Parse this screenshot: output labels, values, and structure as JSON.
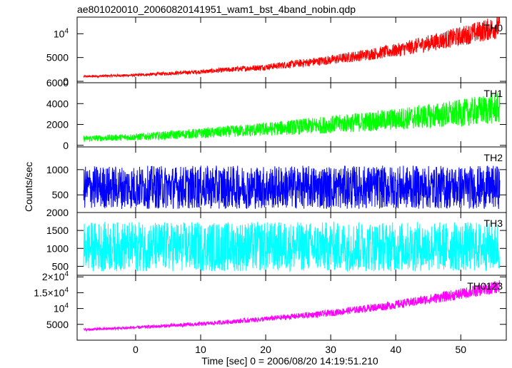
{
  "chart_data": {
    "type": "line",
    "title": "ae801020010_20060820141951_wam1_bst_4band_nobin.qdp",
    "xlabel": "Time [sec] 0 = 2006/08/20 14:19:51.210",
    "ylabel": "Counts/sec",
    "xlim": [
      -9,
      57
    ],
    "x_ticks": [
      0,
      10,
      20,
      30,
      40,
      50
    ],
    "x_tick_labels": [
      "0",
      "10",
      "20",
      "30",
      "40",
      "50"
    ],
    "grid": false,
    "series": [
      {
        "name": "TH0",
        "color": "#ff0000",
        "ylim": [
          -300,
          13500
        ],
        "y_ticks": [
          0,
          5000,
          10000
        ],
        "y_tick_labels": [
          {
            "base": "0"
          },
          {
            "base": "5000"
          },
          {
            "base": "10",
            "exp": "4"
          }
        ],
        "x": [
          -8,
          0,
          10,
          20,
          30,
          40,
          50,
          56
        ],
        "values": [
          1000,
          1300,
          2000,
          3000,
          4500,
          6500,
          9500,
          11500
        ],
        "noise": [
          0.18,
          0.18,
          0.18,
          0.18,
          0.18,
          0.18,
          0.18,
          0.18
        ]
      },
      {
        "name": "TH1",
        "color": "#00ff00",
        "ylim": [
          -150,
          6000
        ],
        "y_ticks": [
          0,
          2000,
          4000,
          6000
        ],
        "y_tick_labels": [
          {
            "base": "0"
          },
          {
            "base": "2000"
          },
          {
            "base": "4000"
          },
          {
            "base": "6000"
          }
        ],
        "x": [
          -8,
          0,
          10,
          20,
          30,
          40,
          50,
          56
        ],
        "values": [
          650,
          800,
          1150,
          1550,
          2000,
          2500,
          3100,
          3600
        ],
        "noise": [
          0.35,
          0.35,
          0.35,
          0.35,
          0.35,
          0.35,
          0.35,
          0.35
        ]
      },
      {
        "name": "TH2",
        "color": "#0000ff",
        "ylim": [
          150,
          1450
        ],
        "y_ticks": [
          500,
          1000
        ],
        "y_tick_labels": [
          {
            "base": "500"
          },
          {
            "base": "1000"
          }
        ],
        "x": [
          -8,
          0,
          10,
          20,
          30,
          40,
          50,
          56
        ],
        "values": [
          650,
          650,
          650,
          650,
          650,
          650,
          650,
          650
        ],
        "noise": [
          0.55,
          0.55,
          0.55,
          0.55,
          0.55,
          0.55,
          0.55,
          0.55
        ]
      },
      {
        "name": "TH3",
        "color": "#00ffff",
        "ylim": [
          250,
          2000
        ],
        "y_ticks": [
          500,
          1000,
          1500,
          2000
        ],
        "y_tick_labels": [
          {
            "base": "500"
          },
          {
            "base": "1000"
          },
          {
            "base": "1500"
          },
          {
            "base": "2000"
          }
        ],
        "x": [
          -8,
          0,
          10,
          20,
          30,
          40,
          50,
          56
        ],
        "values": [
          1050,
          1050,
          1050,
          1050,
          1050,
          1050,
          1050,
          1050
        ],
        "noise": [
          0.55,
          0.55,
          0.55,
          0.55,
          0.55,
          0.55,
          0.55,
          0.55
        ]
      },
      {
        "name": "TH0123",
        "color": "#ff00ff",
        "ylim": [
          0,
          20500
        ],
        "y_ticks": [
          5000,
          10000,
          15000,
          20000
        ],
        "y_tick_labels": [
          {
            "base": "5000"
          },
          {
            "base": "10",
            "exp": "4"
          },
          {
            "base": "1.5×10",
            "exp": "4"
          },
          {
            "base": "2×10",
            "exp": "4"
          }
        ],
        "x": [
          -8,
          0,
          10,
          20,
          30,
          40,
          50,
          56
        ],
        "values": [
          3300,
          4000,
          5100,
          6700,
          8600,
          11200,
          14600,
          17000
        ],
        "noise": [
          0.1,
          0.1,
          0.1,
          0.1,
          0.1,
          0.1,
          0.1,
          0.1
        ]
      }
    ]
  }
}
